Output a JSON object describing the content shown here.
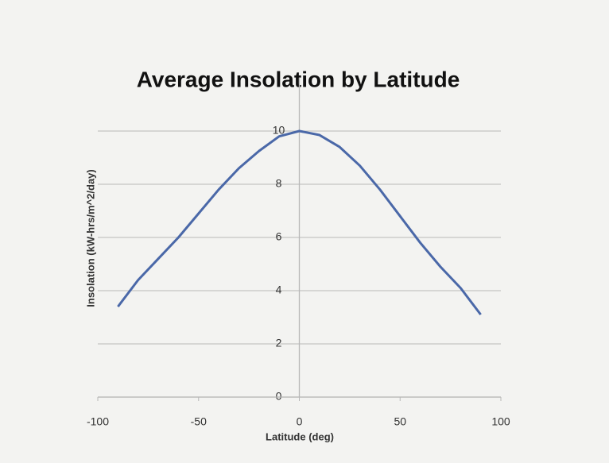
{
  "chart_data": {
    "type": "line",
    "title": "Average Insolation by Latitude",
    "x_label": "Latitude (deg)",
    "y_label": "Insolation (kW-hrs/m^2/day)",
    "x": [
      -90,
      -80,
      -70,
      -60,
      -50,
      -40,
      -30,
      -20,
      -10,
      0,
      10,
      20,
      30,
      40,
      50,
      60,
      70,
      80,
      90
    ],
    "series": [
      {
        "name": "Insolation",
        "color": "#4a68a8",
        "values": [
          3.4,
          4.4,
          5.2,
          6.0,
          6.9,
          7.8,
          8.6,
          9.25,
          9.8,
          10.0,
          9.85,
          9.4,
          8.7,
          7.8,
          6.8,
          5.8,
          4.9,
          4.1,
          3.1
        ]
      }
    ],
    "xlim": [
      -100,
      100
    ],
    "xticks": [
      -100,
      -50,
      0,
      50,
      100
    ],
    "ylim": [
      0,
      12
    ],
    "yticks": [
      0,
      2,
      4,
      6,
      8,
      10
    ],
    "grid": true
  }
}
